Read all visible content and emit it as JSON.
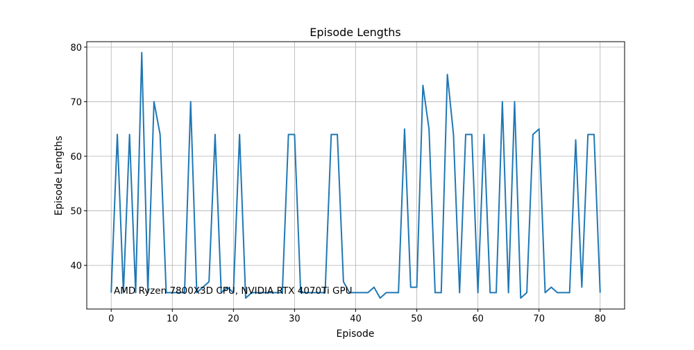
{
  "chart_data": {
    "type": "line",
    "title": "Episode Lengths",
    "xlabel": "Episode",
    "ylabel": "Episode Lengths",
    "annotation": "AMD Ryzen 7800X3D CPU, NVIDIA RTX 4070Ti GPU",
    "xlim": [
      -4,
      84
    ],
    "ylim": [
      32,
      81
    ],
    "xticks": [
      0,
      10,
      20,
      30,
      40,
      50,
      60,
      70,
      80
    ],
    "yticks": [
      40,
      50,
      60,
      70,
      80
    ],
    "grid": true,
    "line_color": "#1f77b4",
    "x": [
      0,
      1,
      2,
      3,
      4,
      5,
      6,
      7,
      8,
      9,
      10,
      11,
      12,
      13,
      14,
      15,
      16,
      17,
      18,
      19,
      20,
      21,
      22,
      23,
      24,
      25,
      26,
      27,
      28,
      29,
      30,
      31,
      32,
      33,
      34,
      35,
      36,
      37,
      38,
      39,
      40,
      41,
      42,
      43,
      44,
      45,
      46,
      47,
      48,
      49,
      50,
      51,
      52,
      53,
      54,
      55,
      56,
      57,
      58,
      59,
      60,
      61,
      62,
      63,
      64,
      65,
      66,
      67,
      68,
      69,
      70,
      71,
      72,
      73,
      74,
      75,
      76,
      77,
      78,
      79,
      80
    ],
    "y": [
      35,
      64,
      35,
      64,
      35,
      79,
      35,
      70,
      64,
      35,
      35,
      35,
      35,
      70,
      35,
      36,
      37,
      64,
      35,
      36,
      35,
      64,
      34,
      35,
      35,
      35,
      35,
      35,
      35,
      64,
      64,
      35,
      35,
      35,
      35,
      35,
      64,
      64,
      37,
      35,
      35,
      35,
      35,
      36,
      34,
      35,
      35,
      35,
      65,
      36,
      36,
      73,
      65,
      35,
      35,
      75,
      64,
      35,
      64,
      64,
      35,
      64,
      35,
      35,
      70,
      35,
      70,
      34,
      35,
      64,
      65,
      35,
      36,
      35,
      35,
      35,
      63,
      36,
      64,
      64,
      35
    ]
  }
}
